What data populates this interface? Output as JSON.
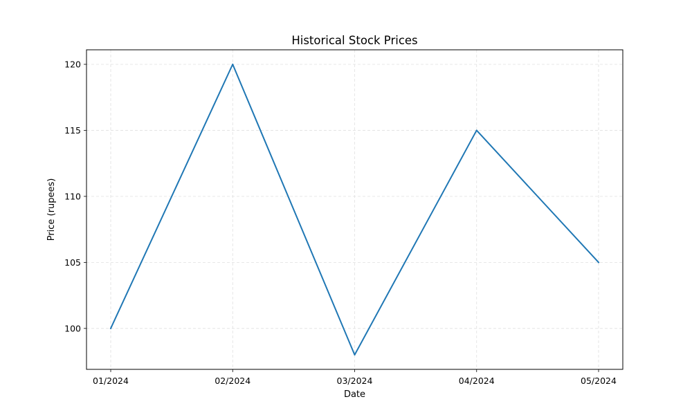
{
  "chart_data": {
    "type": "line",
    "title": "Historical Stock Prices",
    "xlabel": "Date",
    "ylabel": "Price (rupees)",
    "categories": [
      "01/2024",
      "02/2024",
      "03/2024",
      "04/2024",
      "05/2024"
    ],
    "series": [
      {
        "values": [
          100,
          120,
          98,
          115,
          105
        ],
        "color": "#1f77b4"
      }
    ],
    "yticks": [
      100,
      105,
      110,
      115,
      120
    ],
    "ylim": [
      96.9,
      121.1
    ],
    "grid": true,
    "grid_style": "dashed",
    "legend": "none"
  }
}
